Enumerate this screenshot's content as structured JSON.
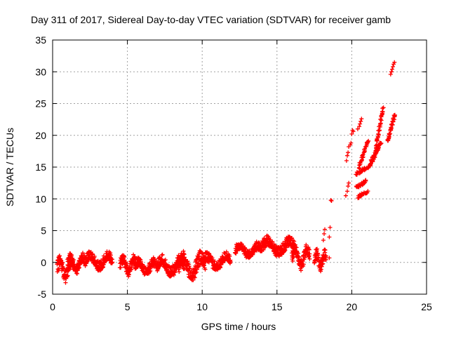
{
  "chart_data": {
    "type": "scatter",
    "title": "Day 311 of 2017, Sidereal Day-to-day VTEC variation (SDTVAR) for receiver gamb",
    "xlabel": "GPS time / hours",
    "ylabel": "SDTVAR / TECUs",
    "xlim": [
      0,
      25
    ],
    "ylim": [
      -5,
      35
    ],
    "xticks": [
      0,
      5,
      10,
      15,
      20,
      25
    ],
    "yticks": [
      -5,
      0,
      5,
      10,
      15,
      20,
      25,
      30,
      35
    ],
    "grid": true,
    "marker": "+",
    "color": "#ff0000",
    "segments": [
      {
        "x0": 0.3,
        "x1": 1.4,
        "ycenter": -0.8,
        "amp": 1.2,
        "thick": 1.6
      },
      {
        "x0": 1.0,
        "x1": 2.2,
        "ycenter": 0.0,
        "amp": 0.9,
        "thick": 1.2
      },
      {
        "x0": 2.2,
        "x1": 4.0,
        "ycenter": 0.3,
        "amp": 0.8,
        "thick": 1.4
      },
      {
        "x0": 4.5,
        "x1": 5.6,
        "ycenter": -0.3,
        "amp": 1.0,
        "thick": 1.2
      },
      {
        "x0": 5.5,
        "x1": 7.0,
        "ycenter": -0.6,
        "amp": 0.8,
        "thick": 1.2
      },
      {
        "x0": 7.0,
        "x1": 8.8,
        "ycenter": -0.5,
        "amp": 1.0,
        "thick": 1.6
      },
      {
        "x0": 8.4,
        "x1": 10.2,
        "ycenter": -0.4,
        "amp": 1.4,
        "thick": 1.8
      },
      {
        "x0": 10.0,
        "x1": 11.9,
        "ycenter": 0.2,
        "amp": 0.8,
        "thick": 1.4
      },
      {
        "x0": 12.2,
        "x1": 14.0,
        "ycenter": 2.0,
        "amp": 0.7,
        "thick": 1.2
      },
      {
        "x0": 14.0,
        "x1": 16.2,
        "ycenter": 2.6,
        "amp": 0.9,
        "thick": 1.4
      },
      {
        "x0": 16.0,
        "x1": 17.2,
        "ycenter": 1.0,
        "amp": 1.2,
        "thick": 1.4
      },
      {
        "x0": 17.5,
        "x1": 18.3,
        "ycenter": 0.5,
        "amp": 1.0,
        "thick": 1.6
      }
    ],
    "scattered_points": [
      [
        18.1,
        3.5
      ],
      [
        18.15,
        4.5
      ],
      [
        18.2,
        5.2
      ],
      [
        18.5,
        4.0
      ],
      [
        18.55,
        5.5
      ],
      [
        18.5,
        0.7
      ],
      [
        18.6,
        9.8
      ],
      [
        18.65,
        9.7
      ],
      [
        19.6,
        10.5
      ],
      [
        19.7,
        11.2
      ],
      [
        19.75,
        12.0
      ],
      [
        19.8,
        12.5
      ],
      [
        19.65,
        16.0
      ],
      [
        19.7,
        16.8
      ],
      [
        19.75,
        17.3
      ],
      [
        19.8,
        18.2
      ],
      [
        19.9,
        18.5
      ],
      [
        19.95,
        18.8
      ],
      [
        20.0,
        20.2
      ],
      [
        20.05,
        20.8
      ],
      [
        20.1,
        20.6
      ],
      [
        20.4,
        21.0
      ],
      [
        20.5,
        21.4
      ],
      [
        20.55,
        21.8
      ],
      [
        20.6,
        22.2
      ],
      [
        20.65,
        22.6
      ],
      [
        22.6,
        29.6
      ],
      [
        22.65,
        30.0
      ],
      [
        22.7,
        30.4
      ],
      [
        22.75,
        30.8
      ],
      [
        22.8,
        31.2
      ],
      [
        22.85,
        31.5
      ]
    ],
    "clusters": [
      {
        "x0": 20.3,
        "x1": 21.0,
        "y0": 14.0,
        "y1": 14.8,
        "n": 22
      },
      {
        "x0": 20.3,
        "x1": 21.0,
        "y0": 11.8,
        "y1": 12.8,
        "n": 22
      },
      {
        "x0": 20.4,
        "x1": 21.1,
        "y0": 10.3,
        "y1": 11.3,
        "n": 20
      },
      {
        "x0": 20.5,
        "x1": 21.1,
        "y0": 15.0,
        "y1": 19.5,
        "n": 30
      },
      {
        "x0": 21.1,
        "x1": 21.6,
        "y0": 14.8,
        "y1": 17.0,
        "n": 30
      },
      {
        "x0": 21.3,
        "x1": 22.0,
        "y0": 16.0,
        "y1": 19.0,
        "n": 35
      },
      {
        "x0": 21.6,
        "x1": 22.1,
        "y0": 18.0,
        "y1": 24.5,
        "n": 35
      },
      {
        "x0": 22.4,
        "x1": 22.9,
        "y0": 19.0,
        "y1": 23.5,
        "n": 35
      }
    ]
  }
}
